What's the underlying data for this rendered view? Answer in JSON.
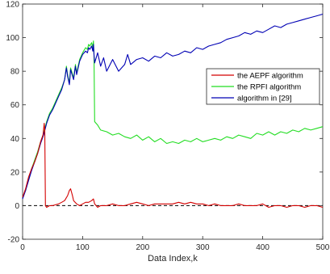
{
  "chart_data": {
    "type": "line",
    "title": "",
    "xlabel": "Data Index,k",
    "ylabel": "",
    "xlim": [
      0,
      500
    ],
    "ylim": [
      -20,
      120
    ],
    "xticks": [
      0,
      100,
      200,
      300,
      400,
      500
    ],
    "yticks": [
      -20,
      0,
      20,
      40,
      60,
      80,
      100,
      120
    ],
    "grid": false,
    "legend_position": "right",
    "reference_line": {
      "y": 0,
      "style": "dashed",
      "color": "#000000"
    },
    "series": [
      {
        "name": "the AEPF algorithm",
        "color": "#d40000",
        "x": [
          0,
          5,
          10,
          15,
          20,
          25,
          30,
          34,
          36,
          37,
          38,
          40,
          45,
          50,
          60,
          65,
          70,
          75,
          78,
          80,
          83,
          85,
          90,
          95,
          100,
          105,
          110,
          115,
          118,
          120,
          125,
          130,
          140,
          150,
          160,
          170,
          180,
          190,
          200,
          210,
          220,
          230,
          240,
          250,
          260,
          270,
          280,
          290,
          300,
          310,
          320,
          330,
          340,
          350,
          360,
          370,
          380,
          390,
          400,
          410,
          420,
          430,
          440,
          450,
          460,
          470,
          480,
          490,
          500
        ],
        "y": [
          5,
          10,
          17,
          22,
          26,
          31,
          38,
          42,
          49,
          45,
          0,
          -1,
          0,
          0,
          1,
          2,
          3,
          6,
          9,
          10,
          6,
          3,
          1,
          0,
          1,
          2,
          2,
          3,
          4,
          1,
          -1,
          0,
          0,
          1,
          0,
          0,
          1,
          2,
          1,
          0,
          1,
          1,
          1,
          1,
          2,
          1,
          2,
          1,
          1,
          0,
          1,
          0,
          0,
          0,
          1,
          0,
          0,
          0,
          1,
          -1,
          0,
          0,
          -1,
          0,
          0,
          -1,
          0,
          0,
          -1
        ]
      },
      {
        "name": "the RPFI algorithm",
        "color": "#22dd22",
        "x": [
          0,
          5,
          10,
          15,
          20,
          25,
          30,
          35,
          40,
          45,
          50,
          55,
          60,
          65,
          70,
          73,
          75,
          78,
          80,
          85,
          88,
          90,
          95,
          100,
          105,
          108,
          110,
          112,
          115,
          117,
          118,
          119,
          120,
          125,
          130,
          140,
          150,
          160,
          170,
          180,
          190,
          200,
          210,
          220,
          230,
          240,
          250,
          260,
          270,
          280,
          290,
          300,
          310,
          320,
          330,
          340,
          350,
          360,
          370,
          380,
          390,
          400,
          410,
          420,
          430,
          440,
          450,
          460,
          470,
          480,
          490,
          500
        ],
        "y": [
          5,
          9,
          16,
          22,
          27,
          32,
          38,
          43,
          50,
          55,
          58,
          62,
          66,
          70,
          75,
          83,
          78,
          73,
          82,
          76,
          84,
          79,
          87,
          91,
          94,
          93,
          96,
          95,
          97,
          94,
          98,
          90,
          50,
          48,
          45,
          44,
          42,
          43,
          41,
          40,
          42,
          39,
          41,
          38,
          40,
          37,
          38,
          37,
          39,
          38,
          40,
          38,
          39,
          40,
          39,
          41,
          40,
          42,
          41,
          40,
          43,
          42,
          44,
          42,
          44,
          43,
          45,
          44,
          46,
          45,
          46,
          47
        ]
      },
      {
        "name": "algorithm in [29]",
        "color": "#0000b4",
        "x": [
          0,
          5,
          10,
          15,
          20,
          25,
          30,
          35,
          40,
          45,
          50,
          55,
          60,
          65,
          70,
          73,
          75,
          78,
          80,
          85,
          88,
          90,
          95,
          100,
          105,
          108,
          110,
          112,
          115,
          117,
          118,
          119,
          120,
          125,
          130,
          135,
          140,
          150,
          160,
          170,
          175,
          180,
          190,
          200,
          210,
          220,
          230,
          240,
          250,
          260,
          270,
          280,
          290,
          300,
          310,
          320,
          330,
          340,
          350,
          360,
          370,
          380,
          390,
          400,
          410,
          420,
          430,
          440,
          450,
          460,
          470,
          480,
          490,
          500
        ],
        "y": [
          4,
          9,
          15,
          21,
          26,
          31,
          37,
          42,
          49,
          54,
          57,
          61,
          65,
          69,
          75,
          82,
          77,
          72,
          81,
          75,
          83,
          78,
          86,
          90,
          92,
          91,
          94,
          93,
          95,
          92,
          96,
          90,
          85,
          91,
          83,
          88,
          80,
          87,
          80,
          84,
          90,
          84,
          87,
          88,
          86,
          89,
          88,
          91,
          89,
          90,
          92,
          91,
          94,
          93,
          95,
          96,
          97,
          99,
          100,
          101,
          103,
          102,
          104,
          103,
          105,
          107,
          106,
          108,
          109,
          110,
          111,
          112,
          113,
          114
        ]
      }
    ]
  }
}
